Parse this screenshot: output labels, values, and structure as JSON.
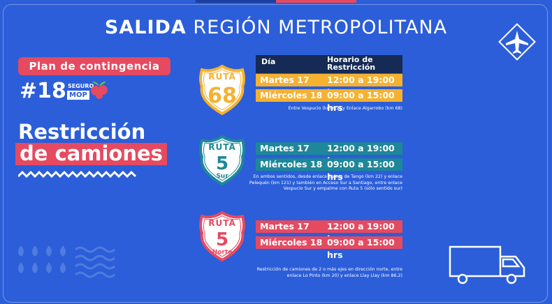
{
  "header": {
    "title_bold": "SALIDA",
    "title_rest": "REGIÓN METROPOLITANA"
  },
  "badge": {
    "label": "Plan de contingencia",
    "hashtag": "#18",
    "seguro": "SEGURO",
    "mop": "MOP"
  },
  "heading": {
    "line1": "Restricción",
    "line2": "de camiones"
  },
  "table_header": {
    "day": "Día",
    "hours": "Horario de Restricción"
  },
  "routes": [
    {
      "shield_top": "RUTA",
      "number": "68",
      "color": "#f5b130",
      "rows": [
        [
          "Martes 17",
          "12:00 a 19:00 hrs"
        ],
        [
          "Miércoles 18",
          "09:00 a 15:00 hrs"
        ]
      ],
      "note": "Entre Vespucio (km 6,2) y Enlace Algarrobo (km 68)"
    },
    {
      "shield_top": "RUTA",
      "number": "5",
      "sub": "Sur",
      "color": "#1e8799",
      "rows": [
        [
          "Martes 17",
          "12:00 a 19:00 hrs"
        ],
        [
          "Miércoles 18",
          "09:00 a 15:00 hrs"
        ]
      ],
      "note": "En ambos sentidos, desde enlace Calera de Tango (km 22) y enlace Pelequén (km 121) y también en Acceso Sur a Santiago, entre enlace Vespucio Sur y empalme con Ruta 5 (sólo sentido sur)"
    },
    {
      "shield_top": "RUTA",
      "number": "5",
      "sub": "Norte",
      "color": "#e54a60",
      "rows": [
        [
          "Martes 17",
          "12:00 a 19:00 hrs"
        ],
        [
          "Miércoles 18",
          "09:00 a 15:00 hrs"
        ]
      ],
      "note": "Restricción de camiones de 2 o más ejes en dirección norte, entre enlace Lo Pinto (km 20) y enlace Llay Llay (km 86,2)"
    }
  ]
}
